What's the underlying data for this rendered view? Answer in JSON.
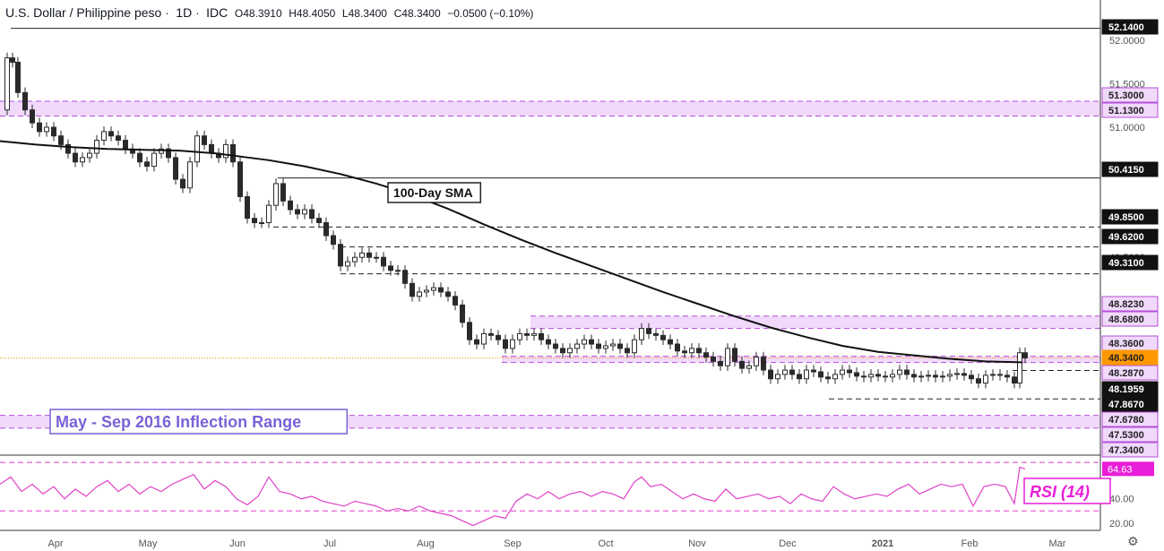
{
  "header": {
    "symbol": "U.S. Dollar / Philippine peso",
    "interval": "1D",
    "source": "IDC",
    "open": "O48.3910",
    "high": "H48.4050",
    "low": "L48.3400",
    "close": "C48.3400",
    "change": "−0.0500 (−0.10%)"
  },
  "colors": {
    "zone_fill": "#f0d9fb",
    "zone_border": "#b64ed8",
    "rsi_line": "#e040c8",
    "rsi_badge": "#e91ed8",
    "price_badge": "#ff9800",
    "sma_line": "#111111",
    "candle": "#2a2a2a"
  },
  "chart_data": {
    "type": "candlestick",
    "price_axis_ticks": [
      "52.0000",
      "51.5000",
      "51.0000",
      "50.5000",
      "50.0000",
      "49.5000",
      "49.0000",
      "48.5000",
      "48.0000",
      "47.5000"
    ],
    "price_ylim": [
      47.24,
      52.24
    ],
    "time_axis_labels": [
      "Apr",
      "May",
      "Jun",
      "Jul",
      "Aug",
      "Sep",
      "Oct",
      "Nov",
      "Dec",
      "2021",
      "Feb",
      "Mar"
    ],
    "level_labels": [
      {
        "value": "52.1400",
        "style": "dark"
      },
      {
        "value": "51.3000",
        "style": "zone"
      },
      {
        "value": "51.1300",
        "style": "zone"
      },
      {
        "value": "50.4150",
        "style": "dark"
      },
      {
        "value": "49.8500",
        "style": "dark"
      },
      {
        "value": "49.6200",
        "style": "dark"
      },
      {
        "value": "49.3100",
        "style": "dark"
      },
      {
        "value": "48.8230",
        "style": "zone"
      },
      {
        "value": "48.6800",
        "style": "zone"
      },
      {
        "value": "48.3600",
        "style": "zone"
      },
      {
        "value": "48.3400",
        "style": "current"
      },
      {
        "value": "48.2870",
        "style": "zone"
      },
      {
        "value": "48.1959",
        "style": "dark"
      },
      {
        "value": "47.8670",
        "style": "dark"
      },
      {
        "value": "47.6780",
        "style": "zone"
      },
      {
        "value": "47.5300",
        "style": "zone"
      },
      {
        "value": "47.3400",
        "style": "zone"
      }
    ],
    "zones": [
      {
        "from": 51.13,
        "to": 51.3,
        "x_start": "Mar"
      },
      {
        "from": 48.68,
        "to": 48.823,
        "x_start": "Sep"
      },
      {
        "from": 48.287,
        "to": 48.36,
        "x_start": "Aug"
      },
      {
        "from": 47.53,
        "to": 47.678,
        "x_start": "Mar"
      }
    ],
    "annotations": {
      "sma_label": "100-Day SMA",
      "range_label": "May - Sep 2016 Inflection Range",
      "rsi_label": "RSI (14)"
    },
    "series": [
      {
        "name": "100-Day SMA",
        "type": "line",
        "values": [
          [
            0,
            50.84
          ],
          [
            40,
            50.8
          ],
          [
            80,
            50.77
          ],
          [
            120,
            50.75
          ],
          [
            160,
            50.74
          ],
          [
            200,
            50.73
          ],
          [
            240,
            50.7
          ],
          [
            270,
            50.66
          ],
          [
            300,
            50.62
          ],
          [
            340,
            50.55
          ],
          [
            380,
            50.46
          ],
          [
            420,
            50.35
          ],
          [
            460,
            50.22
          ],
          [
            500,
            50.06
          ],
          [
            540,
            49.88
          ],
          [
            580,
            49.71
          ],
          [
            620,
            49.55
          ],
          [
            660,
            49.4
          ],
          [
            700,
            49.25
          ],
          [
            740,
            49.1
          ],
          [
            780,
            48.96
          ],
          [
            820,
            48.82
          ],
          [
            860,
            48.69
          ],
          [
            900,
            48.58
          ],
          [
            940,
            48.48
          ],
          [
            980,
            48.41
          ],
          [
            1020,
            48.37
          ],
          [
            1060,
            48.33
          ],
          [
            1100,
            48.3
          ],
          [
            1140,
            48.29
          ]
        ]
      },
      {
        "name": "USD/PHP",
        "type": "ohlc_line",
        "values": [
          [
            0,
            51.2
          ],
          [
            8,
            51.8
          ],
          [
            14,
            51.75
          ],
          [
            20,
            51.4
          ],
          [
            28,
            51.2
          ],
          [
            36,
            51.05
          ],
          [
            44,
            50.95
          ],
          [
            52,
            51.0
          ],
          [
            60,
            50.9
          ],
          [
            68,
            50.8
          ],
          [
            76,
            50.7
          ],
          [
            84,
            50.6
          ],
          [
            92,
            50.65
          ],
          [
            100,
            50.7
          ],
          [
            108,
            50.85
          ],
          [
            116,
            50.95
          ],
          [
            124,
            50.9
          ],
          [
            132,
            50.85
          ],
          [
            140,
            50.75
          ],
          [
            148,
            50.7
          ],
          [
            156,
            50.6
          ],
          [
            164,
            50.55
          ],
          [
            172,
            50.7
          ],
          [
            180,
            50.75
          ],
          [
            188,
            50.65
          ],
          [
            196,
            50.4
          ],
          [
            204,
            50.3
          ],
          [
            212,
            50.6
          ],
          [
            220,
            50.9
          ],
          [
            228,
            50.8
          ],
          [
            236,
            50.7
          ],
          [
            244,
            50.65
          ],
          [
            252,
            50.8
          ],
          [
            260,
            50.6
          ],
          [
            268,
            50.2
          ],
          [
            276,
            49.95
          ],
          [
            284,
            49.9
          ],
          [
            292,
            49.9
          ],
          [
            300,
            50.1
          ],
          [
            308,
            50.35
          ],
          [
            316,
            50.15
          ],
          [
            324,
            50.05
          ],
          [
            332,
            50.0
          ],
          [
            340,
            50.05
          ],
          [
            348,
            49.95
          ],
          [
            356,
            49.9
          ],
          [
            364,
            49.75
          ],
          [
            372,
            49.65
          ],
          [
            380,
            49.4
          ],
          [
            388,
            49.45
          ],
          [
            396,
            49.5
          ],
          [
            404,
            49.55
          ],
          [
            412,
            49.5
          ],
          [
            420,
            49.5
          ],
          [
            428,
            49.4
          ],
          [
            436,
            49.35
          ],
          [
            444,
            49.35
          ],
          [
            452,
            49.2
          ],
          [
            460,
            49.05
          ],
          [
            468,
            49.1
          ],
          [
            476,
            49.12
          ],
          [
            484,
            49.15
          ],
          [
            492,
            49.1
          ],
          [
            500,
            49.05
          ],
          [
            508,
            48.95
          ],
          [
            516,
            48.75
          ],
          [
            524,
            48.55
          ],
          [
            532,
            48.5
          ],
          [
            540,
            48.62
          ],
          [
            548,
            48.6
          ],
          [
            556,
            48.55
          ],
          [
            564,
            48.45
          ],
          [
            572,
            48.55
          ],
          [
            580,
            48.62
          ],
          [
            588,
            48.6
          ],
          [
            596,
            48.62
          ],
          [
            604,
            48.55
          ],
          [
            612,
            48.5
          ],
          [
            620,
            48.45
          ],
          [
            628,
            48.4
          ],
          [
            636,
            48.45
          ],
          [
            644,
            48.5
          ],
          [
            652,
            48.55
          ],
          [
            660,
            48.5
          ],
          [
            668,
            48.45
          ],
          [
            676,
            48.48
          ],
          [
            684,
            48.5
          ],
          [
            692,
            48.45
          ],
          [
            700,
            48.4
          ],
          [
            708,
            48.55
          ],
          [
            716,
            48.68
          ],
          [
            724,
            48.62
          ],
          [
            732,
            48.6
          ],
          [
            740,
            48.55
          ],
          [
            748,
            48.5
          ],
          [
            756,
            48.42
          ],
          [
            764,
            48.4
          ],
          [
            772,
            48.45
          ],
          [
            780,
            48.4
          ],
          [
            788,
            48.35
          ],
          [
            796,
            48.3
          ],
          [
            804,
            48.25
          ],
          [
            812,
            48.45
          ],
          [
            820,
            48.3
          ],
          [
            828,
            48.22
          ],
          [
            836,
            48.25
          ],
          [
            844,
            48.35
          ],
          [
            852,
            48.2
          ],
          [
            860,
            48.1
          ],
          [
            868,
            48.15
          ],
          [
            876,
            48.2
          ],
          [
            884,
            48.15
          ],
          [
            892,
            48.1
          ],
          [
            900,
            48.2
          ],
          [
            908,
            48.18
          ],
          [
            916,
            48.12
          ],
          [
            924,
            48.1
          ],
          [
            932,
            48.15
          ],
          [
            940,
            48.2
          ],
          [
            948,
            48.17
          ],
          [
            956,
            48.13
          ],
          [
            964,
            48.12
          ],
          [
            972,
            48.15
          ],
          [
            980,
            48.13
          ],
          [
            988,
            48.12
          ],
          [
            996,
            48.15
          ],
          [
            1004,
            48.2
          ],
          [
            1012,
            48.15
          ],
          [
            1020,
            48.12
          ],
          [
            1028,
            48.13
          ],
          [
            1036,
            48.14
          ],
          [
            1044,
            48.12
          ],
          [
            1052,
            48.13
          ],
          [
            1060,
            48.15
          ],
          [
            1068,
            48.16
          ],
          [
            1076,
            48.14
          ],
          [
            1084,
            48.1
          ],
          [
            1092,
            48.05
          ],
          [
            1100,
            48.14
          ],
          [
            1108,
            48.15
          ],
          [
            1116,
            48.14
          ],
          [
            1124,
            48.12
          ],
          [
            1132,
            48.05
          ],
          [
            1138,
            48.4
          ],
          [
            1144,
            48.34
          ]
        ]
      },
      {
        "name": "RSI (14)",
        "type": "line",
        "current": "64.63",
        "axis_ticks": [
          "40.00",
          "20.00"
        ],
        "ylim": [
          14,
          73
        ],
        "values": [
          [
            0,
            52
          ],
          [
            12,
            58
          ],
          [
            24,
            46
          ],
          [
            36,
            52
          ],
          [
            48,
            44
          ],
          [
            60,
            50
          ],
          [
            72,
            40
          ],
          [
            84,
            48
          ],
          [
            96,
            42
          ],
          [
            108,
            50
          ],
          [
            120,
            55
          ],
          [
            132,
            46
          ],
          [
            144,
            52
          ],
          [
            156,
            44
          ],
          [
            168,
            50
          ],
          [
            180,
            46
          ],
          [
            192,
            52
          ],
          [
            204,
            56
          ],
          [
            216,
            60
          ],
          [
            228,
            48
          ],
          [
            240,
            55
          ],
          [
            252,
            50
          ],
          [
            264,
            40
          ],
          [
            276,
            35
          ],
          [
            288,
            42
          ],
          [
            300,
            58
          ],
          [
            312,
            46
          ],
          [
            324,
            44
          ],
          [
            336,
            40
          ],
          [
            348,
            42
          ],
          [
            360,
            38
          ],
          [
            372,
            36
          ],
          [
            384,
            34
          ],
          [
            396,
            38
          ],
          [
            408,
            36
          ],
          [
            420,
            34
          ],
          [
            432,
            30
          ],
          [
            444,
            32
          ],
          [
            456,
            30
          ],
          [
            468,
            34
          ],
          [
            480,
            30
          ],
          [
            492,
            28
          ],
          [
            504,
            26
          ],
          [
            516,
            22
          ],
          [
            528,
            18
          ],
          [
            540,
            22
          ],
          [
            552,
            26
          ],
          [
            564,
            24
          ],
          [
            576,
            38
          ],
          [
            588,
            44
          ],
          [
            600,
            40
          ],
          [
            612,
            46
          ],
          [
            624,
            40
          ],
          [
            636,
            44
          ],
          [
            648,
            46
          ],
          [
            660,
            42
          ],
          [
            672,
            46
          ],
          [
            684,
            44
          ],
          [
            696,
            40
          ],
          [
            708,
            54
          ],
          [
            716,
            58
          ],
          [
            726,
            50
          ],
          [
            738,
            52
          ],
          [
            750,
            46
          ],
          [
            762,
            40
          ],
          [
            774,
            44
          ],
          [
            786,
            40
          ],
          [
            798,
            38
          ],
          [
            810,
            48
          ],
          [
            822,
            40
          ],
          [
            834,
            42
          ],
          [
            846,
            44
          ],
          [
            858,
            40
          ],
          [
            870,
            42
          ],
          [
            882,
            36
          ],
          [
            894,
            44
          ],
          [
            906,
            40
          ],
          [
            918,
            38
          ],
          [
            930,
            50
          ],
          [
            942,
            44
          ],
          [
            954,
            40
          ],
          [
            966,
            42
          ],
          [
            978,
            44
          ],
          [
            990,
            42
          ],
          [
            1002,
            48
          ],
          [
            1014,
            52
          ],
          [
            1026,
            44
          ],
          [
            1038,
            48
          ],
          [
            1050,
            52
          ],
          [
            1062,
            50
          ],
          [
            1074,
            52
          ],
          [
            1086,
            34
          ],
          [
            1098,
            50
          ],
          [
            1110,
            52
          ],
          [
            1122,
            50
          ],
          [
            1132,
            36
          ],
          [
            1138,
            66
          ],
          [
            1144,
            64.63
          ]
        ]
      }
    ]
  }
}
